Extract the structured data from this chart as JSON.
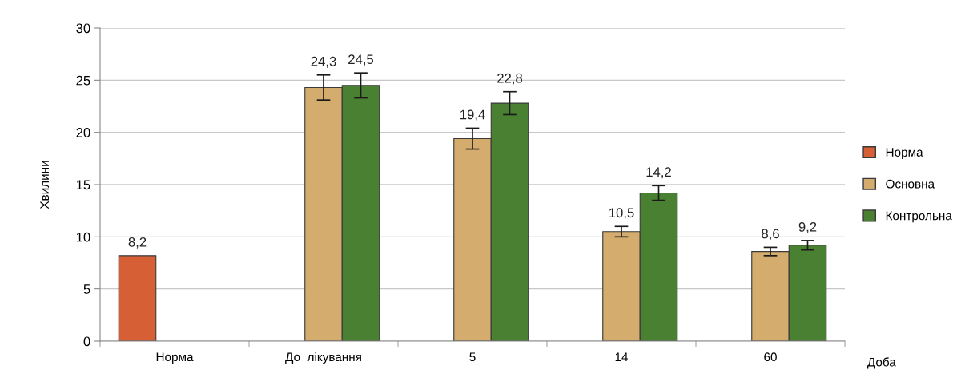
{
  "chart_data": {
    "type": "bar",
    "ylabel": "Хвилини",
    "xlabel": "Доба",
    "categories": [
      "Норма",
      "До  лікування",
      "5",
      "14",
      "60"
    ],
    "series": [
      {
        "name": "Норма",
        "color": "#d65f35",
        "values": [
          8.2,
          null,
          null,
          null,
          null
        ],
        "value_labels": [
          "8,2",
          null,
          null,
          null,
          null
        ]
      },
      {
        "name": "Основна",
        "color": "#d4ac6e",
        "values": [
          null,
          24.3,
          19.4,
          10.5,
          8.6
        ],
        "errors": [
          null,
          1.2,
          1.0,
          0.5,
          0.4
        ],
        "value_labels": [
          null,
          "24,3",
          "19,4",
          "10,5",
          "8,6"
        ]
      },
      {
        "name": "Контрольна",
        "color": "#4a8031",
        "values": [
          null,
          24.5,
          22.8,
          14.2,
          9.2
        ],
        "errors": [
          null,
          1.2,
          1.1,
          0.7,
          0.45
        ],
        "value_labels": [
          null,
          "24,5",
          "22,8",
          "14,2",
          "9,2"
        ]
      }
    ],
    "ylim": [
      0,
      30
    ],
    "yticks": [
      0,
      5,
      10,
      15,
      20,
      25,
      30
    ],
    "grid": "y",
    "legend": "right"
  }
}
